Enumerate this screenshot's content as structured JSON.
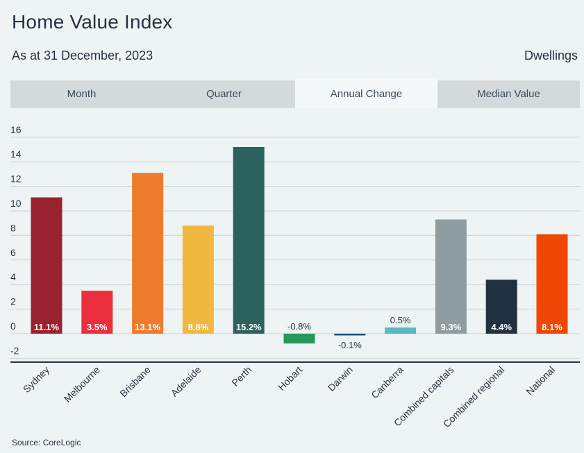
{
  "header": {
    "title": "Home Value Index",
    "subtitle": "As at 31 December, 2023",
    "dwellings": "Dwellings"
  },
  "tabs": [
    {
      "label": "Month",
      "active": false
    },
    {
      "label": "Quarter",
      "active": false
    },
    {
      "label": "Annual Change",
      "active": true
    },
    {
      "label": "Median Value",
      "active": false
    }
  ],
  "footer": {
    "source": "Source: CoreLogic"
  },
  "chart_data": {
    "type": "bar",
    "categories": [
      "Sydney",
      "Melbourne",
      "Brisbane",
      "Adelaide",
      "Perth",
      "Hobart",
      "Darwin",
      "Canberra",
      "Combined capitals",
      "Combined regional",
      "National"
    ],
    "values": [
      11.1,
      3.5,
      13.1,
      8.8,
      15.2,
      -0.8,
      -0.1,
      0.5,
      9.3,
      4.4,
      8.1
    ],
    "data_labels": [
      "11.1%",
      "3.5%",
      "13.1%",
      "8.8%",
      "15.2%",
      "-0.8%",
      "-0.1%",
      "0.5%",
      "9.3%",
      "4.4%",
      "8.1%"
    ],
    "colors": [
      "#98222e",
      "#ea2e3c",
      "#ef7b2e",
      "#f0b840",
      "#2c625e",
      "#22995a",
      "#184f7e",
      "#56b9c5",
      "#8f9ca0",
      "#22313f",
      "#ef4703"
    ],
    "yticks": [
      -2,
      0,
      2,
      4,
      6,
      8,
      10,
      12,
      14,
      16
    ],
    "ylim": [
      -2.4,
      16.8
    ],
    "grid": true,
    "xlabel": "",
    "ylabel": ""
  }
}
